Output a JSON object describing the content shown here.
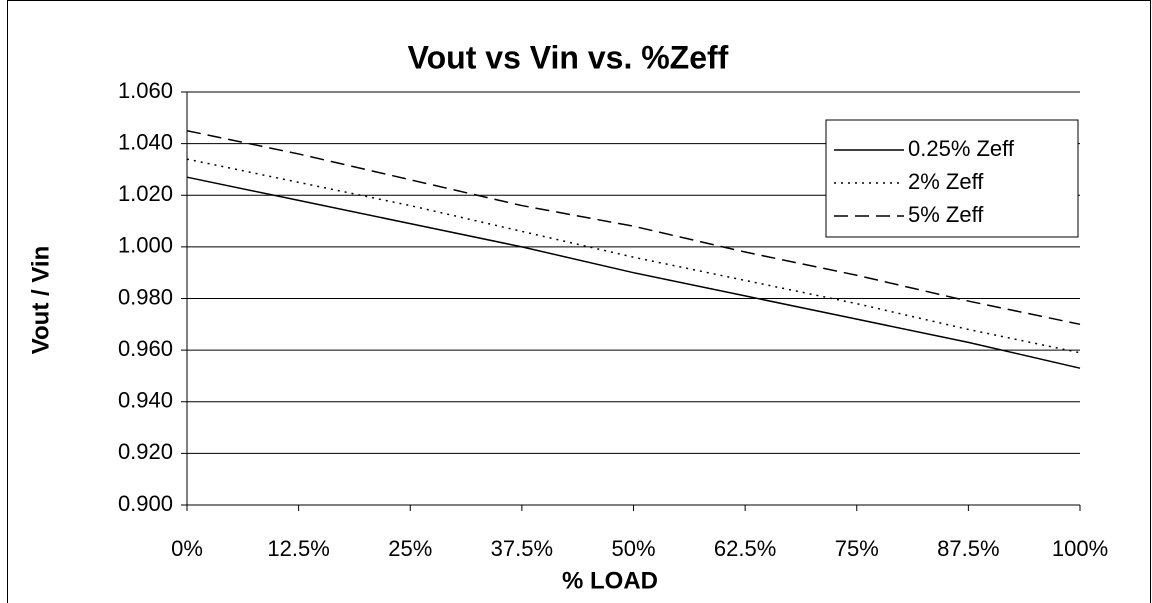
{
  "chart_data": {
    "type": "line",
    "title": "Vout vs Vin vs. %Zeff",
    "xlabel": "% LOAD",
    "ylabel": "Vout / Vin",
    "categories": [
      "0%",
      "12.5%",
      "25%",
      "37.5%",
      "50%",
      "62.5%",
      "75%",
      "87.5%",
      "100%"
    ],
    "series": [
      {
        "name": "0.25% Zeff",
        "color": "#000000",
        "dash": "solid",
        "values": [
          1.027,
          1.018,
          1.009,
          1.0,
          0.99,
          0.981,
          0.972,
          0.963,
          0.953
        ]
      },
      {
        "name": "2% Zeff",
        "color": "#000000",
        "dash": "dotted",
        "values": [
          1.034,
          1.025,
          1.016,
          1.006,
          0.996,
          0.987,
          0.978,
          0.968,
          0.959
        ]
      },
      {
        "name": "5% Zeff",
        "color": "#000000",
        "dash": "dashed",
        "values": [
          1.045,
          1.036,
          1.026,
          1.016,
          1.008,
          0.998,
          0.989,
          0.979,
          0.97
        ]
      }
    ],
    "ylim": [
      0.9,
      1.06
    ],
    "yticks": [
      {
        "value": 0.9,
        "label": "0.900"
      },
      {
        "value": 0.92,
        "label": "0.920"
      },
      {
        "value": 0.94,
        "label": "0.940"
      },
      {
        "value": 0.96,
        "label": "0.960"
      },
      {
        "value": 0.98,
        "label": "0.980"
      },
      {
        "value": 1.0,
        "label": "1.000"
      },
      {
        "value": 1.02,
        "label": "1.020"
      },
      {
        "value": 1.04,
        "label": "1.040"
      },
      {
        "value": 1.06,
        "label": "1.060"
      }
    ],
    "grid": true,
    "legend": "top-right"
  }
}
